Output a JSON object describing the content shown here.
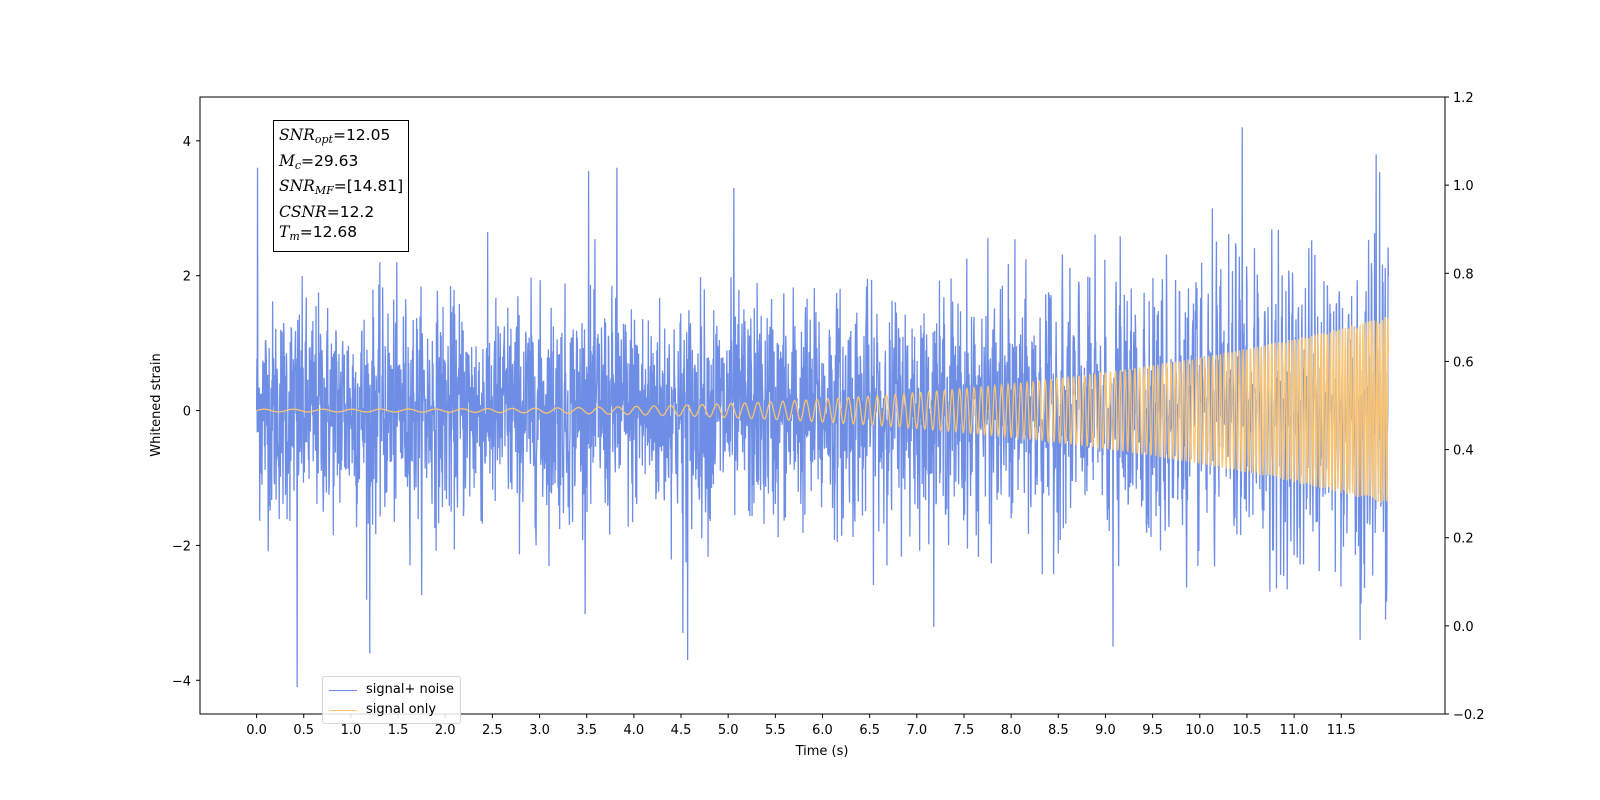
{
  "chart_data": {
    "type": "line",
    "xlabel": "Time (s)",
    "ylabel": "Whitened strain",
    "xlim": [
      -0.6,
      12.6
    ],
    "ylim": [
      -4.5,
      4.65
    ],
    "xticks": [
      "0.0",
      "0.5",
      "1.0",
      "1.5",
      "2.0",
      "2.5",
      "3.0",
      "3.5",
      "4.0",
      "4.5",
      "5.0",
      "5.5",
      "6.0",
      "6.5",
      "7.0",
      "7.5",
      "8.0",
      "8.5",
      "9.0",
      "9.5",
      "10.0",
      "10.5",
      "11.0",
      "11.5"
    ],
    "yticks_left": [
      4,
      2,
      0,
      -2,
      -4
    ],
    "yticks_left_labels": [
      "4",
      "2",
      "0",
      "−2",
      "−4"
    ],
    "y2lim": [
      -0.2,
      1.2
    ],
    "yticks_right": [
      "1.2",
      "1.0",
      "0.8",
      "0.6",
      "0.4",
      "0.2",
      "0.0",
      "−0.2"
    ],
    "series": [
      {
        "name": "signal+ noise",
        "color": "#6e8ee6",
        "description_points": {
          "x": [
            0.0,
            0.01,
            0.43,
            1.2,
            3.52,
            3.82,
            4.52,
            4.57,
            5.06,
            9.08,
            10.45,
            11.7,
            11.87,
            11.97,
            12.0
          ],
          "y": [
            0.0,
            3.6,
            -4.1,
            -3.6,
            3.55,
            3.6,
            -3.3,
            -3.7,
            3.3,
            -3.5,
            4.2,
            -3.4,
            3.8,
            -3.1,
            2.0
          ]
        },
        "noise_sigma": 0.8,
        "x_range": [
          0.0,
          12.0
        ]
      },
      {
        "name": "signal only",
        "color": "#ffc66b",
        "amplitude_start": 0.02,
        "amplitude_end": 1.4,
        "x_range": [
          0.0,
          12.0
        ]
      }
    ],
    "legend_position": "lower-left",
    "annotation": {
      "snr_opt": "12.05",
      "mc": "29.63",
      "snr_mf": "[14.81]",
      "csnr": "12.2",
      "tm": "12.68"
    }
  },
  "legend": {
    "noise_label": "signal+ noise",
    "signal_label": "signal only"
  },
  "info": {
    "snr_opt_base": "SNR",
    "snr_opt_sub": "opt",
    "snr_opt_val": "=12.05",
    "mc_base": "M",
    "mc_sub": "c",
    "mc_val": "=29.63",
    "snr_mf_base": "SNR",
    "snr_mf_sub": "MF",
    "snr_mf_val": "=[14.81]",
    "csnr_base": "CSNR",
    "csnr_val": "=12.2",
    "tm_base": "T",
    "tm_sub": "m",
    "tm_val": "=12.68"
  }
}
